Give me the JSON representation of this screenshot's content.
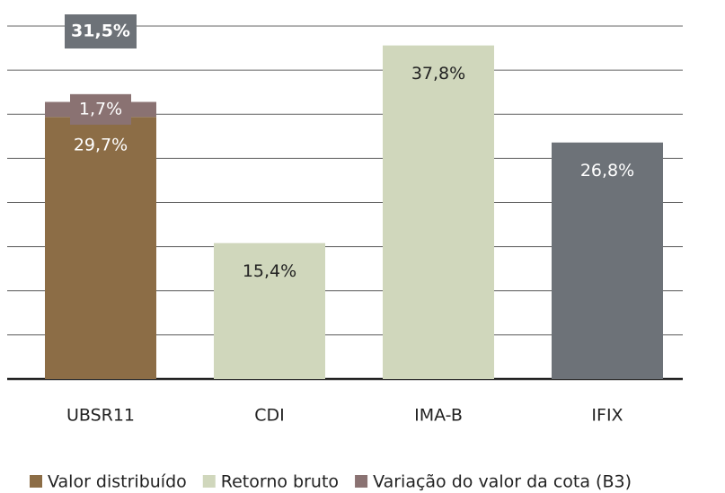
{
  "chart_data": {
    "type": "stacked_bar",
    "categories": [
      "UBSR11",
      "CDI",
      "IMA-B",
      "IFIX"
    ],
    "series": [
      {
        "name": "Valor distribuído",
        "color": "#8c6d46",
        "values": [
          29.7,
          null,
          null,
          null
        ],
        "value_labels": [
          "29,7%",
          null,
          null,
          null
        ]
      },
      {
        "name": "Retorno bruto",
        "color": "#d0d7bc",
        "colors": [
          "#d0d7bc",
          "#d0d7bc",
          "#d0d7bc",
          "#6d7278"
        ],
        "values": [
          null,
          15.4,
          37.8,
          26.8
        ],
        "value_labels": [
          null,
          "15,4%",
          "37,8%",
          "26,8%"
        ]
      },
      {
        "name": "Variação do valor da cota (B3)",
        "color": "#8a7272",
        "values": [
          1.7,
          null,
          null,
          null
        ],
        "value_labels": [
          "1,7%",
          null,
          null,
          null
        ]
      }
    ],
    "totals": [
      31.5
    ],
    "total_labels": [
      "31,5%"
    ],
    "total_color": "#6d7278",
    "ylim": [
      0,
      40
    ],
    "yticks": [
      0,
      5,
      10,
      15,
      20,
      25,
      30,
      35,
      40
    ],
    "grid": true,
    "legend": "bottom"
  }
}
